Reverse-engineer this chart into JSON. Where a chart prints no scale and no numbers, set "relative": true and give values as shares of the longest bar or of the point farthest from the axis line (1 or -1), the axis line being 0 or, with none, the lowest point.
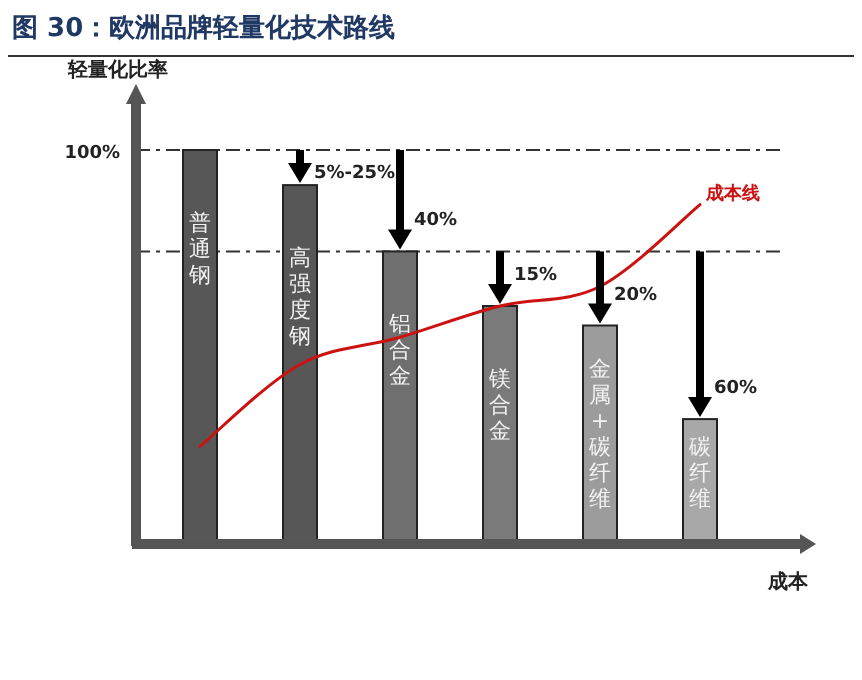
{
  "chart_data": {
    "type": "bar",
    "title": "图 30：欧洲品牌轻量化技术路线",
    "xlabel": "成本",
    "ylabel": "轻量化比率",
    "relative": true,
    "categories": [
      "普通钢",
      "高强度钢",
      "铝合金",
      "镁合金",
      "金属+碳纤维",
      "碳纤维"
    ],
    "series": [
      {
        "colors": [
          "#575757",
          "#575757",
          "#6f6f6f",
          "#7a7a7a",
          "#9c9c9c",
          "#a8a8a8"
        ],
        "values": [
          1.0,
          0.91,
          0.74,
          0.6,
          0.55,
          0.31
        ]
      },
      {
        "type": "line",
        "name": "成本线",
        "color": "#cc1111",
        "values": [
          0.24,
          0.45,
          0.52,
          0.6,
          0.65,
          0.86
        ]
      }
    ],
    "ref_lines": [
      {
        "axis": "y",
        "value": 1.0,
        "label": "100%"
      },
      {
        "axis": "y",
        "value": 0.74,
        "label": null
      }
    ],
    "annotations": [
      {
        "text": "5%-25%",
        "x": "高强度钢",
        "y": 0.91
      },
      {
        "text": "40%",
        "x": "铝合金",
        "y": 0.74
      },
      {
        "text": "15%",
        "x": "镁合金",
        "y": 0.6
      },
      {
        "text": "20%",
        "x": "金属+碳纤维",
        "y": 0.55
      },
      {
        "text": "60%",
        "x": "碳纤维",
        "y": 0.31
      }
    ]
  }
}
